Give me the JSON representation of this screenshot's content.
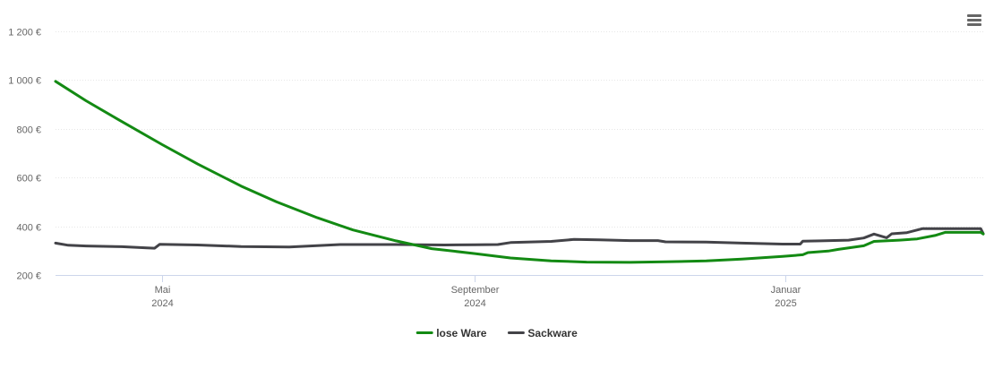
{
  "chart_data": {
    "type": "line",
    "y_ticks": [
      {
        "value": 200,
        "label": "200 €"
      },
      {
        "value": 400,
        "label": "400 €"
      },
      {
        "value": 600,
        "label": "600 €"
      },
      {
        "value": 800,
        "label": "800 €"
      },
      {
        "value": 1000,
        "label": "1 000 €"
      },
      {
        "value": 1200,
        "label": "1 200 €"
      }
    ],
    "ylim": [
      200,
      1200
    ],
    "xlim": [
      "2024-03-20",
      "2025-03-20"
    ],
    "x_ticks": [
      {
        "date": "2024-05-01",
        "month": "Mai",
        "year": "2024"
      },
      {
        "date": "2024-09-01",
        "month": "September",
        "year": "2024"
      },
      {
        "date": "2025-01-01",
        "month": "Januar",
        "year": "2025"
      }
    ],
    "grid": true,
    "legend_position": "bottom-center",
    "series": [
      {
        "name": "lose Ware",
        "color": "#138a13",
        "points": [
          [
            "2024-03-20",
            995
          ],
          [
            "2024-04-01",
            915
          ],
          [
            "2024-04-15",
            830
          ],
          [
            "2024-05-01",
            735
          ],
          [
            "2024-05-15",
            655
          ],
          [
            "2024-06-01",
            565
          ],
          [
            "2024-06-15",
            500
          ],
          [
            "2024-07-01",
            435
          ],
          [
            "2024-07-15",
            385
          ],
          [
            "2024-08-01",
            340
          ],
          [
            "2024-08-15",
            308
          ],
          [
            "2024-09-01",
            288
          ],
          [
            "2024-09-15",
            270
          ],
          [
            "2024-10-01",
            258
          ],
          [
            "2024-10-15",
            253
          ],
          [
            "2024-11-01",
            252
          ],
          [
            "2024-11-15",
            254
          ],
          [
            "2024-12-01",
            258
          ],
          [
            "2024-12-15",
            265
          ],
          [
            "2024-12-31",
            276
          ],
          [
            "2025-01-08",
            283
          ],
          [
            "2025-01-10",
            292
          ],
          [
            "2025-01-18",
            298
          ],
          [
            "2025-01-22",
            305
          ],
          [
            "2025-02-01",
            320
          ],
          [
            "2025-02-05",
            338
          ],
          [
            "2025-02-15",
            343
          ],
          [
            "2025-02-22",
            348
          ],
          [
            "2025-03-01",
            362
          ],
          [
            "2025-03-05",
            375
          ],
          [
            "2025-03-19",
            375
          ],
          [
            "2025-03-20",
            368
          ]
        ]
      },
      {
        "name": "Sackware",
        "color": "#434348",
        "points": [
          [
            "2024-03-20",
            331
          ],
          [
            "2024-03-25",
            322
          ],
          [
            "2024-04-01",
            319
          ],
          [
            "2024-04-15",
            316
          ],
          [
            "2024-04-25",
            311
          ],
          [
            "2024-04-28",
            310
          ],
          [
            "2024-04-30",
            326
          ],
          [
            "2024-05-15",
            323
          ],
          [
            "2024-06-01",
            317
          ],
          [
            "2024-06-20",
            315
          ],
          [
            "2024-07-10",
            325
          ],
          [
            "2024-08-01",
            325
          ],
          [
            "2024-08-20",
            323
          ],
          [
            "2024-09-01",
            324
          ],
          [
            "2024-09-10",
            325
          ],
          [
            "2024-09-15",
            333
          ],
          [
            "2024-10-01",
            338
          ],
          [
            "2024-10-10",
            346
          ],
          [
            "2024-10-20",
            344
          ],
          [
            "2024-11-01",
            341
          ],
          [
            "2024-11-12",
            341
          ],
          [
            "2024-11-15",
            336
          ],
          [
            "2024-12-01",
            335
          ],
          [
            "2024-12-15",
            331
          ],
          [
            "2024-12-31",
            327
          ],
          [
            "2025-01-07",
            327
          ],
          [
            "2025-01-08",
            339
          ],
          [
            "2025-01-15",
            340
          ],
          [
            "2025-01-26",
            343
          ],
          [
            "2025-02-01",
            352
          ],
          [
            "2025-02-05",
            368
          ],
          [
            "2025-02-10",
            353
          ],
          [
            "2025-02-12",
            369
          ],
          [
            "2025-02-18",
            374
          ],
          [
            "2025-02-24",
            390
          ],
          [
            "2025-03-19",
            390
          ],
          [
            "2025-03-20",
            370
          ]
        ]
      }
    ]
  }
}
